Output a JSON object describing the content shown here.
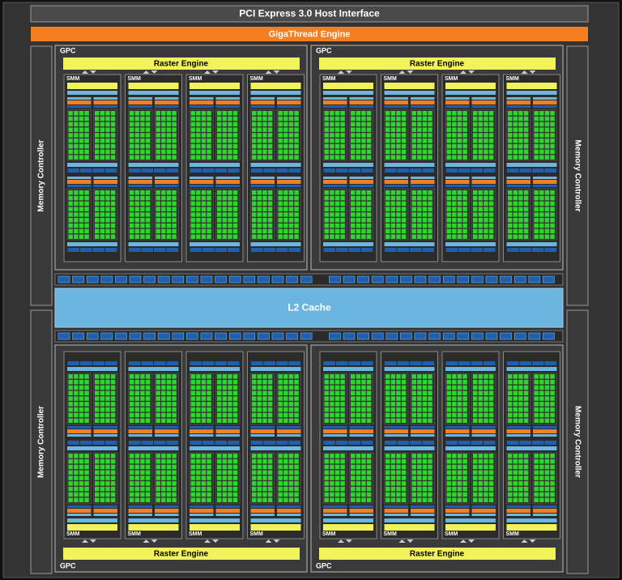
{
  "header": {
    "host_interface": "PCI Express 3.0 Host Interface",
    "thread_engine": "GigaThread Engine"
  },
  "memory_controllers": [
    "Memory Controller",
    "Memory Controller",
    "Memory Controller",
    "Memory Controller"
  ],
  "l2_cache": "L2 Cache",
  "gpcs": [
    {
      "label": "GPC",
      "raster_engine": "Raster Engine",
      "smms": [
        "SMM",
        "SMM",
        "SMM",
        "SMM"
      ]
    },
    {
      "label": "GPC",
      "raster_engine": "Raster Engine",
      "smms": [
        "SMM",
        "SMM",
        "SMM",
        "SMM"
      ]
    },
    {
      "label": "GPC",
      "raster_engine": "Raster Engine",
      "smms": [
        "SMM",
        "SMM",
        "SMM",
        "SMM"
      ]
    },
    {
      "label": "GPC",
      "raster_engine": "Raster Engine",
      "smms": [
        "SMM",
        "SMM",
        "SMM",
        "SMM"
      ]
    }
  ]
}
